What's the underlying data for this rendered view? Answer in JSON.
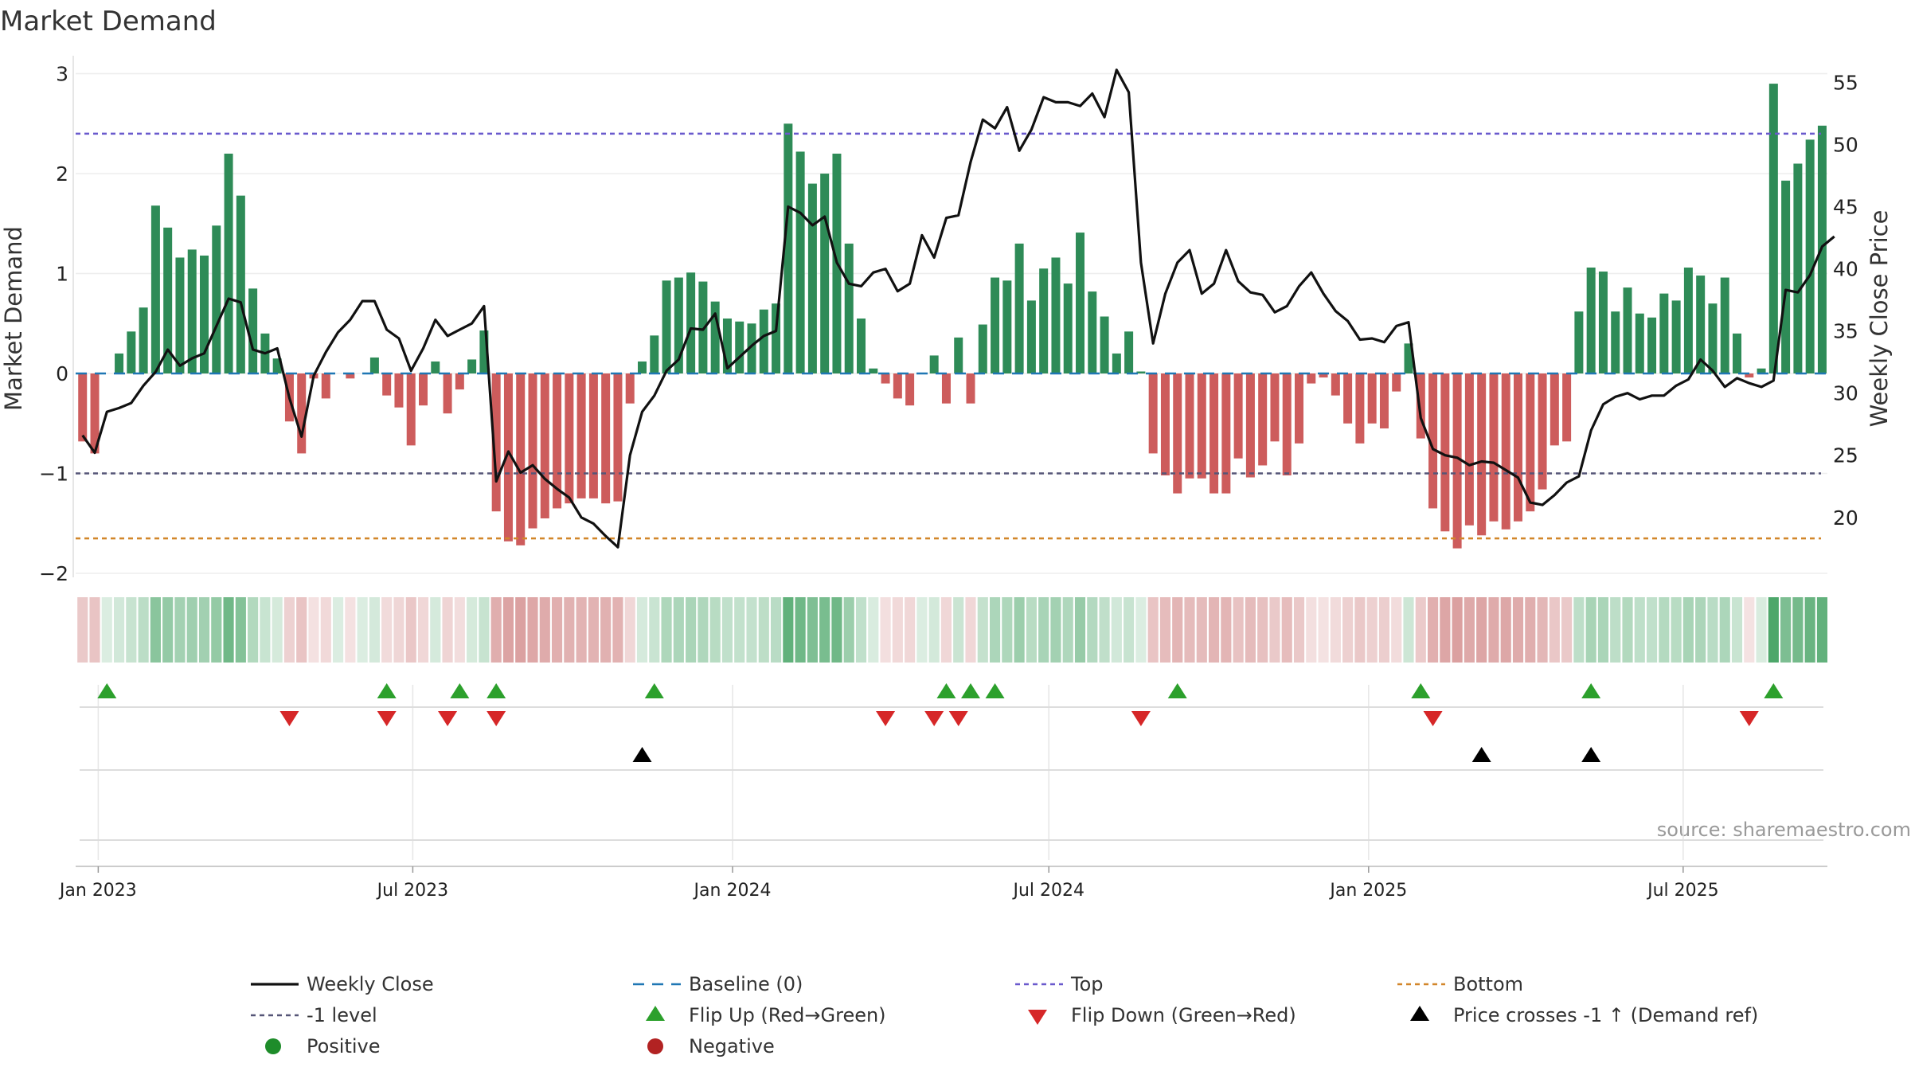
{
  "chart_data": {
    "type": "bar+line",
    "title": "Market Demand",
    "ylabel": "Market Demand",
    "y2label": "Weekly Close Price",
    "ylim": [
      -2,
      3.1
    ],
    "y2lim": [
      15.5,
      56.5
    ],
    "yticks": [
      -2,
      -1,
      0,
      1,
      2,
      3
    ],
    "ytick_labels": [
      "−2",
      "−1",
      "0",
      "1",
      "2",
      "3"
    ],
    "y2ticks": [
      20,
      25,
      30,
      35,
      40,
      45,
      50,
      55
    ],
    "y2tick_labels": [
      "20",
      "25",
      "30",
      "35",
      "40",
      "45",
      "50",
      "55"
    ],
    "x_start": "2022-12-19",
    "x_end": "2025-09-22",
    "xticks": [
      {
        "date": "2023-01-01",
        "label": "Jan 2023"
      },
      {
        "date": "2023-07-01",
        "label": "Jul 2023"
      },
      {
        "date": "2024-01-01",
        "label": "Jan 2024"
      },
      {
        "date": "2024-07-01",
        "label": "Jul 2024"
      },
      {
        "date": "2025-01-01",
        "label": "Jan 2025"
      },
      {
        "date": "2025-07-01",
        "label": "Jul 2025"
      }
    ],
    "first_week": "2022-12-23",
    "weeks": 144,
    "demand": [
      -0.68,
      -0.8,
      0,
      0.2,
      0.42,
      0.66,
      1.68,
      1.46,
      1.16,
      1.24,
      1.18,
      1.48,
      2.2,
      1.78,
      0.85,
      0.4,
      0.15,
      -0.48,
      -0.8,
      -0.05,
      -0.25,
      0,
      -0.05,
      0,
      0.16,
      -0.22,
      -0.34,
      -0.72,
      -0.32,
      0.12,
      -0.4,
      -0.16,
      0.14,
      0.43,
      -1.38,
      -1.68,
      -1.72,
      -1.55,
      -1.45,
      -1.35,
      -1.3,
      -1.25,
      -1.25,
      -1.3,
      -1.28,
      -0.3,
      0.12,
      0.38,
      0.93,
      0.96,
      1.01,
      0.92,
      0.72,
      0.55,
      0.52,
      0.5,
      0.64,
      0.7,
      2.5,
      2.22,
      1.9,
      2.0,
      2.2,
      1.3,
      0.55,
      0.05,
      -0.1,
      -0.25,
      -0.32,
      0,
      0.18,
      -0.3,
      0.36,
      -0.3,
      0.49,
      0.96,
      0.93,
      1.3,
      0.73,
      1.05,
      1.16,
      0.9,
      1.41,
      0.82,
      0.57,
      0.2,
      0.42,
      0.02,
      -0.8,
      -1.02,
      -1.2,
      -1.05,
      -1.05,
      -1.2,
      -1.2,
      -0.85,
      -1.04,
      -0.92,
      -0.68,
      -1.02,
      -0.7,
      -0.1,
      -0.04,
      -0.22,
      -0.5,
      -0.7,
      -0.5,
      -0.55,
      -0.18,
      0.3,
      -0.65,
      -1.35,
      -1.58,
      -1.75,
      -1.52,
      -1.62,
      -1.48,
      -1.56,
      -1.48,
      -1.38,
      -1.16,
      -0.72,
      -0.68,
      0.62,
      1.06,
      1.02,
      0.62,
      0.86,
      0.6,
      0.56,
      0.8,
      0.73,
      1.06,
      0.98,
      0.7,
      0.96,
      0.4,
      -0.04,
      0.05,
      2.9,
      1.93,
      2.1,
      2.34,
      2.48
    ],
    "close": [
      26.6,
      25.2,
      28.5,
      28.8,
      29.2,
      30.6,
      31.7,
      33.5,
      32.2,
      32.8,
      33.2,
      35.4,
      37.6,
      37.3,
      33.5,
      33.2,
      33.6,
      29.6,
      26.5,
      31.4,
      33.3,
      34.9,
      35.9,
      37.4,
      37.4,
      35.1,
      34.4,
      31.8,
      33.6,
      35.9,
      34.6,
      35.1,
      35.6,
      37.0,
      22.9,
      25.3,
      23.6,
      24.2,
      23.1,
      22.3,
      21.6,
      20.0,
      19.5,
      18.5,
      17.6,
      25.0,
      28.5,
      29.8,
      31.8,
      32.7,
      35.2,
      35.1,
      36.4,
      32.0,
      32.9,
      33.8,
      34.6,
      35.0,
      45.0,
      44.5,
      43.5,
      44.2,
      40.5,
      38.8,
      38.6,
      39.7,
      40.0,
      38.2,
      38.8,
      42.7,
      40.9,
      44.1,
      44.3,
      48.6,
      52.0,
      51.3,
      53.0,
      49.5,
      51.2,
      53.8,
      53.4,
      53.4,
      53.1,
      54.1,
      52.2,
      56.0,
      54.2,
      40.5,
      34.0,
      38.0,
      40.5,
      41.5,
      38.0,
      38.8,
      41.5,
      39.0,
      38.1,
      37.9,
      36.5,
      37.0,
      38.6,
      39.7,
      38.0,
      36.6,
      35.8,
      34.3,
      34.4,
      34.1,
      35.4,
      35.7,
      28.0,
      25.5,
      25.0,
      24.8,
      24.2,
      24.5,
      24.4,
      23.8,
      23.2,
      21.2,
      21.0,
      21.8,
      22.8,
      23.3,
      27.0,
      29.1,
      29.7,
      30.0,
      29.5,
      29.8,
      29.8,
      30.6,
      31.1,
      32.7,
      31.8,
      30.5,
      31.2,
      30.8,
      30.5,
      31.0,
      38.3,
      38.1,
      39.5,
      41.8,
      42.6
    ],
    "lines": {
      "top": 2.4,
      "baseline": 0,
      "minus_one": -1,
      "bottom": -1.65
    },
    "flip_up_weeks": [
      2,
      25,
      31,
      34,
      47,
      71,
      73,
      75,
      90,
      110,
      124,
      139
    ],
    "flip_down_weeks": [
      17,
      25,
      30,
      34,
      66,
      70,
      72,
      87,
      111,
      137
    ],
    "price_cross_weeks": [
      46,
      115,
      124
    ],
    "legend": [
      {
        "key": "close",
        "label": "Weekly Close"
      },
      {
        "key": "baseline",
        "label": "Baseline (0)"
      },
      {
        "key": "top",
        "label": "Top"
      },
      {
        "key": "bottom",
        "label": "Bottom"
      },
      {
        "key": "minus_one",
        "label": "-1 level"
      },
      {
        "key": "flip_up",
        "label": "Flip Up (Red→Green)"
      },
      {
        "key": "flip_down",
        "label": "Flip Down (Green→Red)"
      },
      {
        "key": "price_cross",
        "label": "Price crosses -1 ↑ (Demand ref)"
      },
      {
        "key": "positive",
        "label": "Positive"
      },
      {
        "key": "negative",
        "label": "Negative"
      }
    ],
    "source": "source: sharemaestro.com"
  },
  "colors": {
    "positive_bar": "#2e8b57",
    "negative_bar": "#cd5c5c",
    "close_line": "#111111",
    "baseline": "#1f77b4",
    "top": "#6a5acd",
    "minus_one": "#555577",
    "bottom": "#d2862a",
    "flip_up": "#2ca02c",
    "flip_down": "#d62728",
    "price_cross": "#000000",
    "positive_dot": "#1e8c2a",
    "negative_dot": "#b22222"
  }
}
